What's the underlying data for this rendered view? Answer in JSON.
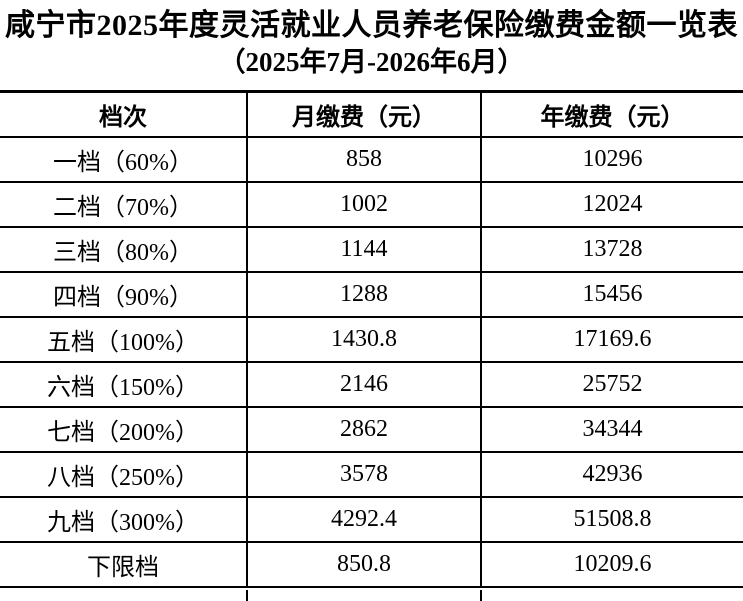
{
  "title": "咸宁市2025年度灵活就业人员养老保险缴费金额一览表",
  "subtitle": "（2025年7月-2026年6月）",
  "colors": {
    "background": "#ffffff",
    "text": "#000000",
    "border": "#000000"
  },
  "table": {
    "columns": [
      "档次",
      "月缴费（元）",
      "年缴费（元）"
    ],
    "rows": [
      {
        "tier": "一档（60%）",
        "monthly": "858",
        "yearly": "10296"
      },
      {
        "tier": "二档（70%）",
        "monthly": "1002",
        "yearly": "12024"
      },
      {
        "tier": "三档（80%）",
        "monthly": "1144",
        "yearly": "13728"
      },
      {
        "tier": "四档（90%）",
        "monthly": "1288",
        "yearly": "15456"
      },
      {
        "tier": "五档（100%）",
        "monthly": "1430.8",
        "yearly": "17169.6"
      },
      {
        "tier": "六档（150%）",
        "monthly": "2146",
        "yearly": "25752"
      },
      {
        "tier": "七档（200%）",
        "monthly": "2862",
        "yearly": "34344"
      },
      {
        "tier": "八档（250%）",
        "monthly": "3578",
        "yearly": "42936"
      },
      {
        "tier": "九档（300%）",
        "monthly": "4292.4",
        "yearly": "51508.8"
      },
      {
        "tier": "下限档",
        "monthly": "850.8",
        "yearly": "10209.6"
      }
    ]
  }
}
